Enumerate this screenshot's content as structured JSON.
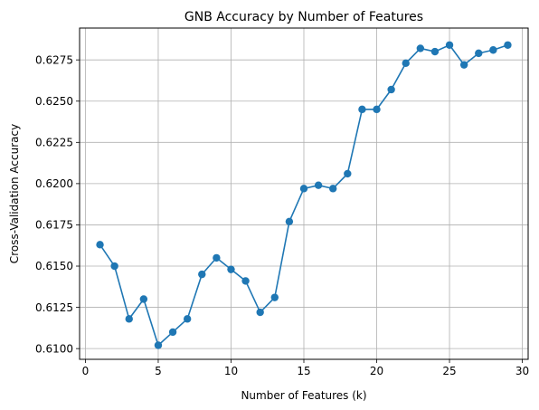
{
  "chart_data": {
    "type": "line",
    "title": "GNB Accuracy by Number of Features",
    "xlabel": "Number of Features (k)",
    "ylabel": "Cross-Validation Accuracy",
    "xlim": [
      -0.4,
      30.4
    ],
    "ylim": [
      0.60935,
      0.62943
    ],
    "xticks": [
      0,
      5,
      10,
      15,
      20,
      25,
      30
    ],
    "yticks": [
      0.61,
      0.6125,
      0.615,
      0.6175,
      0.62,
      0.6225,
      0.625,
      0.6275
    ],
    "ytick_labels": [
      "0.6100",
      "0.6125",
      "0.6150",
      "0.6175",
      "0.6200",
      "0.6225",
      "0.6250",
      "0.6275"
    ],
    "grid": true,
    "legend": "none",
    "series": [
      {
        "color": "#1f77b4",
        "marker": "circle",
        "x": [
          1,
          2,
          3,
          4,
          5,
          6,
          7,
          8,
          9,
          10,
          11,
          12,
          13,
          14,
          15,
          16,
          17,
          18,
          19,
          20,
          21,
          22,
          23,
          24,
          25,
          26,
          27,
          28,
          29
        ],
        "y": [
          0.6163,
          0.615,
          0.6118,
          0.613,
          0.6102,
          0.611,
          0.6118,
          0.6145,
          0.6155,
          0.6148,
          0.6141,
          0.6122,
          0.6131,
          0.6177,
          0.6197,
          0.6199,
          0.6197,
          0.6206,
          0.6245,
          0.6245,
          0.6257,
          0.6273,
          0.6282,
          0.628,
          0.6284,
          0.6272,
          0.6279,
          0.6281,
          0.6284
        ]
      }
    ]
  }
}
